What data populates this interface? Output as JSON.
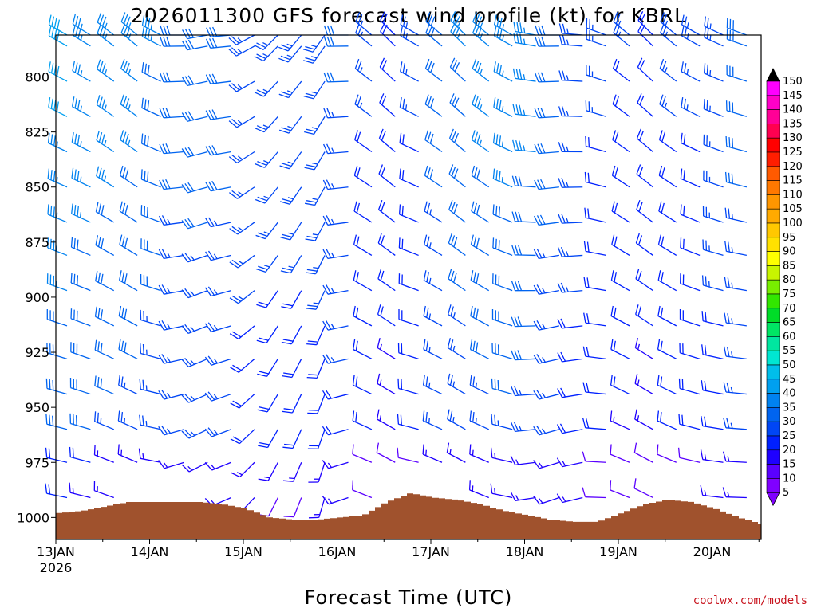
{
  "chart_data": {
    "type": "wind-barb-time-height",
    "title": "2026011300 GFS forecast wind profile (kt) for KBRL",
    "xlabel": "Forecast Time (UTC)",
    "credit": "coolwx.com/models",
    "x_ticks": [
      {
        "label": "13JAN",
        "sublabel": "2026",
        "day": 0
      },
      {
        "label": "14JAN",
        "day": 1
      },
      {
        "label": "15JAN",
        "day": 2
      },
      {
        "label": "16JAN",
        "day": 3
      },
      {
        "label": "17JAN",
        "day": 4
      },
      {
        "label": "18JAN",
        "day": 5
      },
      {
        "label": "19JAN",
        "day": 6
      },
      {
        "label": "20JAN",
        "day": 7
      }
    ],
    "xlim_days": [
      0,
      7.6
    ],
    "y_ticks": [
      800,
      825,
      850,
      875,
      900,
      925,
      950,
      975,
      1000
    ],
    "ylim_hPa": [
      781,
      1010
    ],
    "time_step_hours": 6,
    "levels_hPa": [
      781,
      786,
      802,
      818,
      834,
      850,
      866,
      881,
      897,
      913,
      928,
      944,
      960,
      975,
      991
    ],
    "wind_dir_deg": [
      290,
      292,
      298,
      300,
      288,
      260,
      250,
      255,
      232,
      215,
      210,
      205,
      260,
      300,
      305,
      290,
      300,
      305,
      300,
      290,
      270,
      260,
      265,
      280,
      300,
      305,
      300,
      290,
      285,
      280,
      300,
      310
    ],
    "wind_speed_kt": [
      36,
      34,
      33,
      32,
      30,
      28,
      29,
      28,
      25,
      24,
      24,
      25,
      26,
      22,
      20,
      22,
      28,
      30,
      32,
      33,
      32,
      29,
      25,
      22,
      21,
      20,
      22,
      22,
      25,
      28,
      30,
      32
    ],
    "colorbar": {
      "levels": [
        5,
        10,
        15,
        20,
        25,
        30,
        35,
        40,
        45,
        50,
        55,
        60,
        65,
        70,
        75,
        80,
        85,
        90,
        95,
        100,
        105,
        110,
        115,
        120,
        125,
        130,
        135,
        140,
        145,
        150
      ],
      "colors": [
        "#8000ff",
        "#5a00ff",
        "#1e00ff",
        "#0020ff",
        "#0046f5",
        "#0064f0",
        "#0082f0",
        "#00a0f0",
        "#00beeb",
        "#00e6d2",
        "#00e6a0",
        "#00e664",
        "#00dc28",
        "#32e600",
        "#78ee00",
        "#c8f500",
        "#ffff00",
        "#ffe100",
        "#ffc800",
        "#ffaa00",
        "#ff9600",
        "#ff7800",
        "#ff5a00",
        "#ff1e00",
        "#ff0000",
        "#ff0050",
        "#ff0096",
        "#ff00c8",
        "#ff00ff"
      ],
      "under_color": "#8000ff",
      "over_color": "#000000"
    },
    "terrain": {
      "color": "#a0522d",
      "surface_pressure_hPa": [
        998,
        997,
        995,
        993,
        993,
        993,
        993,
        994,
        996,
        1000,
        1001,
        1001,
        1000,
        999,
        993,
        989,
        991,
        992,
        994,
        997,
        999,
        1001,
        1002,
        1002,
        998,
        994,
        992,
        993,
        996,
        1000,
        1003,
        1004
      ]
    }
  }
}
